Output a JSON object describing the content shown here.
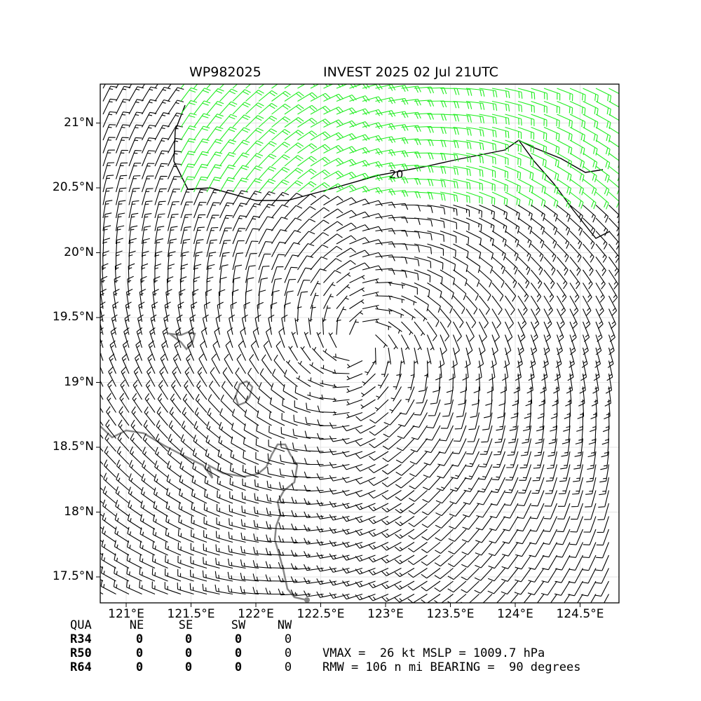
{
  "header": {
    "storm_id": "WP982025",
    "storm_info": "INVEST 2025 02 Jul 21UTC"
  },
  "axes": {
    "lat_labels": [
      "21°N",
      "20.5°N",
      "20°N",
      "19.5°N",
      "19°N",
      "18.5°N",
      "18°N",
      "17.5°N"
    ],
    "lat_values": [
      21,
      20.5,
      20,
      19.5,
      19,
      18.5,
      18,
      17.5
    ],
    "lon_labels": [
      "121°E",
      "121.5°E",
      "122°E",
      "122.5°E",
      "123°E",
      "123.5°E",
      "124°E",
      "124.5°E"
    ],
    "lon_values": [
      121,
      121.5,
      122,
      122.5,
      123,
      123.5,
      124,
      124.5
    ],
    "lon_range": [
      120.8,
      124.8
    ],
    "lat_range": [
      17.3,
      21.3
    ]
  },
  "map": {
    "storm_center": {
      "lon": 122.8,
      "lat": 19.3
    },
    "contour_label": "20",
    "colors": {
      "barb_default": "#000000",
      "barb_strong": "#22ee22",
      "coast": "#888888",
      "contour": "#000000"
    },
    "barb_color_threshold_kt": 20
  },
  "radii_table": {
    "header": [
      "QUA",
      "NE",
      "SE",
      "SW",
      "NW"
    ],
    "rows": [
      {
        "label": "R34",
        "ne": "0",
        "se": "0",
        "sw": "0",
        "nw": "0"
      },
      {
        "label": "R50",
        "ne": "0",
        "se": "0",
        "sw": "0",
        "nw": "0"
      },
      {
        "label": "R64",
        "ne": "0",
        "se": "0",
        "sw": "0",
        "nw": "0"
      }
    ]
  },
  "stats": {
    "line1": "VMAX =  26 kt MSLP = 1009.7 hPa",
    "line2": "RMW = 106 n mi BEARING =  90 degrees"
  }
}
